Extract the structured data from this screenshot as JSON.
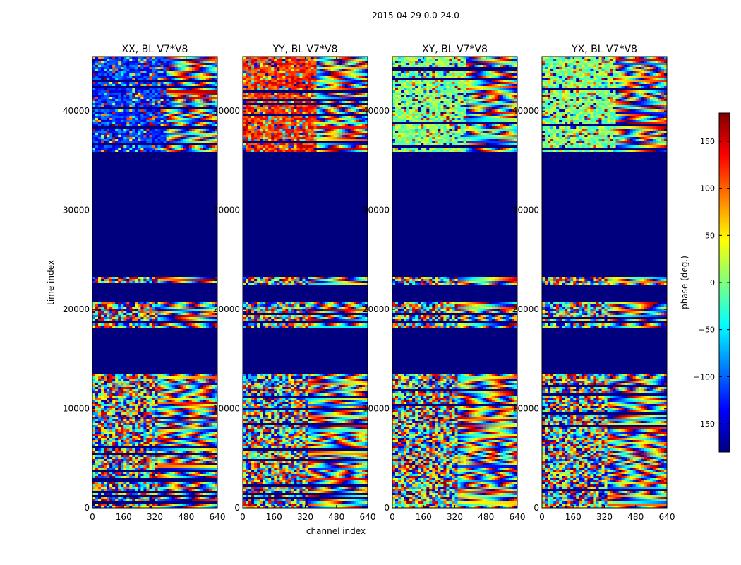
{
  "figure": {
    "suptitle": "2015-04-29 0.0-24.0",
    "xlabel": "channel index",
    "ylabel": "time index"
  },
  "chart_data": {
    "type": "heatmap",
    "title": "2015-04-29 0.0-24.0",
    "xlabel": "channel index",
    "ylabel": "time index",
    "xlim": [
      0,
      640
    ],
    "ylim": [
      0,
      45500
    ],
    "xticks": [
      0,
      160,
      320,
      480,
      640
    ],
    "yticks": [
      0,
      10000,
      20000,
      30000,
      40000
    ],
    "panels": [
      {
        "title": "XX, BL V7*V8",
        "dominant_phase_upper": -120
      },
      {
        "title": "YY, BL V7*V8",
        "dominant_phase_upper": 120
      },
      {
        "title": "XY, BL V7*V8",
        "dominant_phase_upper": 0
      },
      {
        "title": "YX, BL V7*V8",
        "dominant_phase_upper": 0
      }
    ],
    "masked_time_ranges": [
      [
        13400,
        18200
      ],
      [
        18600,
        18800
      ],
      [
        20800,
        22400
      ],
      [
        23200,
        35800
      ]
    ],
    "colorbar": {
      "label": "phase (deg.)",
      "vmin": -180,
      "vmax": 180,
      "ticks": [
        150,
        100,
        50,
        0,
        -50,
        -100,
        -150
      ],
      "tick_labels": [
        "150",
        "100",
        "50",
        "0",
        "−50",
        "−100",
        "−150"
      ],
      "colormap": "jet",
      "colors": [
        "#00007f",
        "#0000ff",
        "#007fff",
        "#00ffff",
        "#7fff7f",
        "#ffff00",
        "#ff7f00",
        "#ff0000",
        "#7f0000"
      ],
      "masked_color": "#00007f"
    }
  }
}
